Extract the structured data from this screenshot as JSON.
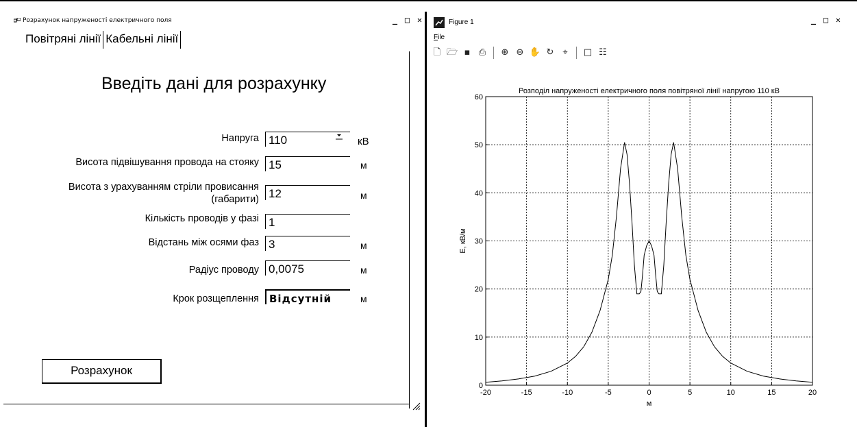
{
  "left_window": {
    "title": "Розрахунок напруженості електричного поля",
    "controls": {
      "minimize": "_",
      "maximize": "□",
      "close": "✕"
    },
    "tabs": [
      {
        "label": "Повітряні лінії",
        "active": true
      },
      {
        "label": "Кабельні лінії",
        "active": false
      }
    ],
    "heading": "Введіть дані для розрахунку",
    "fields": [
      {
        "label": "Напруга",
        "value": "110",
        "unit": "кВ",
        "type": "dropdown"
      },
      {
        "label": "Висота підвішування провода на стояку",
        "value": "15",
        "unit": "м"
      },
      {
        "label_line1": "Висота з урахуванням стріли провисання",
        "label_line2": "(габарити)",
        "value": "12",
        "unit": "м"
      },
      {
        "label": "Кількість проводів у фазі",
        "value": "1",
        "unit": ""
      },
      {
        "label": "Відстань між осями фаз",
        "value": "3",
        "unit": "м"
      },
      {
        "label": "Радіус проводу",
        "value": "0,0075",
        "unit": "м"
      },
      {
        "label": "Крок розщеплення",
        "value": "Відсутній",
        "unit": "м"
      }
    ],
    "calculate_button": "Розрахунок"
  },
  "right_window": {
    "title": "Figure 1",
    "controls": {
      "minimize": "_",
      "maximize": "□",
      "close": "✕"
    },
    "menu": {
      "file_first": "F",
      "file_rest": "ile"
    },
    "toolbar_icons": [
      "new-file-icon",
      "open-folder-icon",
      "save-icon",
      "print-icon",
      "zoom-in-icon",
      "zoom-out-icon",
      "pan-hand-icon",
      "rotate-3d-icon",
      "data-cursor-icon",
      "plot-tools-icon",
      "property-editor-icon"
    ]
  },
  "chart_data": {
    "type": "line",
    "title": "Розподіл напруженості електричного поля повітряної лінії напругою 110 кВ",
    "xlabel": "м",
    "ylabel": "E, кВ/м",
    "xlim": [
      -20,
      20
    ],
    "ylim": [
      0,
      60
    ],
    "xticks": [
      -20,
      -15,
      -10,
      -5,
      0,
      5,
      10,
      15,
      20
    ],
    "yticks": [
      0,
      10,
      20,
      30,
      40,
      50,
      60
    ],
    "grid": true,
    "series": [
      {
        "color": "#000000",
        "x": [
          -20,
          -18,
          -16,
          -14,
          -12,
          -10,
          -9,
          -8,
          -7,
          -6,
          -5,
          -4.5,
          -4,
          -3.5,
          -3,
          -2.7,
          -2.4,
          -2.1,
          -1.8,
          -1.5,
          -1.2,
          -1,
          -0.8,
          -0.6,
          -0.3,
          0,
          0.3,
          0.6,
          0.8,
          1,
          1.2,
          1.5,
          1.8,
          2.1,
          2.4,
          2.7,
          3,
          3.5,
          4,
          4.5,
          5,
          6,
          7,
          8,
          9,
          10,
          12,
          14,
          16,
          18,
          20
        ],
        "y": [
          0.6,
          0.9,
          1.3,
          1.9,
          2.9,
          4.6,
          6,
          8,
          11,
          15.5,
          22,
          27,
          35,
          45,
          50.5,
          48,
          42,
          34,
          25,
          19,
          19,
          19.5,
          23,
          27,
          29,
          30,
          29,
          27,
          23,
          19.5,
          19,
          19,
          25,
          34,
          42,
          48,
          50.5,
          45,
          35,
          27,
          22,
          15.5,
          11,
          8,
          6,
          4.6,
          2.9,
          1.9,
          1.3,
          0.9,
          0.6
        ]
      }
    ]
  },
  "colors": {
    "text": "#000000",
    "background": "#ffffff",
    "grid": "#000000",
    "figure_icon": "#1a1a1a"
  }
}
